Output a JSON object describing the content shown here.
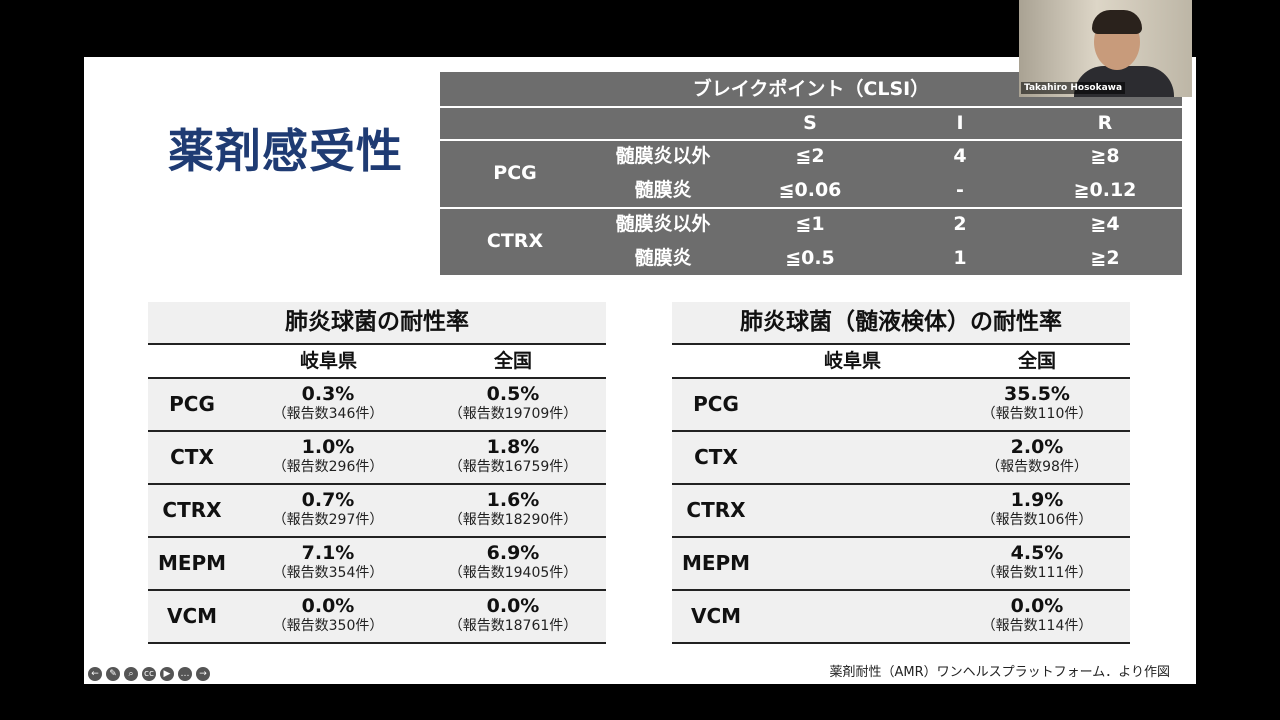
{
  "slide": {
    "title": "薬剤感受性",
    "source": "薬剤耐性（AMR）ワンヘルスプラットフォーム．より作図"
  },
  "breakpoint": {
    "header": "ブレイクポイント（CLSI）",
    "cols": [
      "S",
      "I",
      "R"
    ],
    "groups": [
      {
        "drug": "PCG",
        "rows": [
          {
            "site": "髄膜炎以外",
            "S": "≦2",
            "I": "4",
            "R": "≧8"
          },
          {
            "site": "髄膜炎",
            "S": "≦0.06",
            "I": "-",
            "R": "≧0.12"
          }
        ]
      },
      {
        "drug": "CTRX",
        "rows": [
          {
            "site": "髄膜炎以外",
            "S": "≦1",
            "I": "2",
            "R": "≧4"
          },
          {
            "site": "髄膜炎",
            "S": "≦0.5",
            "I": "1",
            "R": "≧2"
          }
        ]
      }
    ]
  },
  "resist_left": {
    "title": "肺炎球菌の耐性率",
    "cols": [
      "岐阜県",
      "全国"
    ],
    "rows": [
      {
        "drug": "PCG",
        "gifu": "0.3%",
        "gifu_n": "（報告数346件）",
        "nat": "0.5%",
        "nat_n": "（報告数19709件）"
      },
      {
        "drug": "CTX",
        "gifu": "1.0%",
        "gifu_n": "（報告数296件）",
        "nat": "1.8%",
        "nat_n": "（報告数16759件）"
      },
      {
        "drug": "CTRX",
        "gifu": "0.7%",
        "gifu_n": "（報告数297件）",
        "nat": "1.6%",
        "nat_n": "（報告数18290件）"
      },
      {
        "drug": "MEPM",
        "gifu": "7.1%",
        "gifu_n": "（報告数354件）",
        "nat": "6.9%",
        "nat_n": "（報告数19405件）"
      },
      {
        "drug": "VCM",
        "gifu": "0.0%",
        "gifu_n": "（報告数350件）",
        "nat": "0.0%",
        "nat_n": "（報告数18761件）"
      }
    ]
  },
  "resist_right": {
    "title": "肺炎球菌（髄液検体）の耐性率",
    "cols": [
      "岐阜県",
      "全国"
    ],
    "rows": [
      {
        "drug": "PCG",
        "nat": "35.5%",
        "nat_n": "（報告数110件）"
      },
      {
        "drug": "CTX",
        "nat": "2.0%",
        "nat_n": "（報告数98件）"
      },
      {
        "drug": "CTRX",
        "nat": "1.9%",
        "nat_n": "（報告数106件）"
      },
      {
        "drug": "MEPM",
        "nat": "4.5%",
        "nat_n": "（報告数111件）"
      },
      {
        "drug": "VCM",
        "nat": "0.0%",
        "nat_n": "（報告数114件）"
      }
    ]
  },
  "video": {
    "participant": "Takahiro Hosokawa"
  },
  "toolbar": {
    "icons": [
      "back-icon",
      "pen-icon",
      "zoom-icon",
      "captions-icon",
      "video-icon",
      "more-icon",
      "forward-icon"
    ],
    "glyphs": [
      "←",
      "✎",
      "⌕",
      "cc",
      "▶",
      "…",
      "→"
    ]
  }
}
